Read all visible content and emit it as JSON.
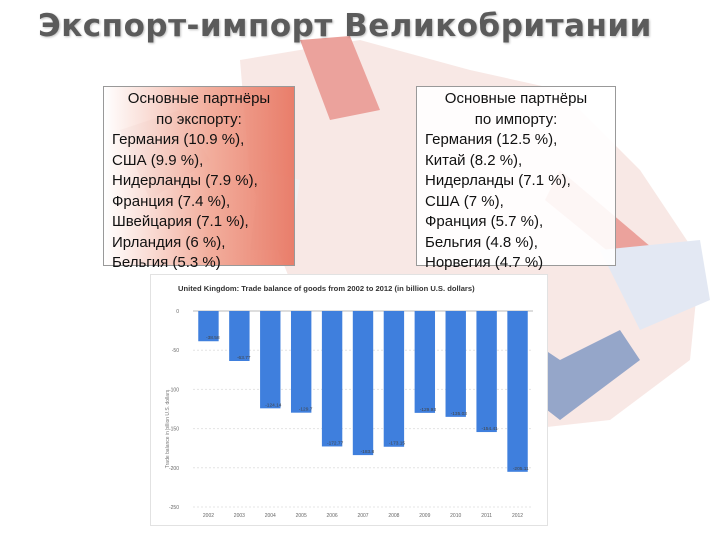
{
  "slide": {
    "title": "Экспорт-импорт Великобритании"
  },
  "export_box": {
    "heading_line1": "Основные партнёры",
    "heading_line2": "по экспорту:",
    "items": [
      "Германия (10.9 %),",
      "США (9.9 %),",
      "Нидерланды (7.9 %),",
      "Франция (7.4 %),",
      "Швейцария (7.1 %),",
      "Ирландия (6 %),",
      "Бельгия (5.3 %)"
    ]
  },
  "import_box": {
    "heading_line1": "Основные партнёры",
    "heading_line2": "по импорту:",
    "items": [
      "Германия (12.5 %),",
      "Китай (8.2 %),",
      "Нидерланды (7.1 %),",
      "США (7 %),",
      "Франция (5.7 %),",
      "Бельгия (4.8 %),",
      "Норвегия (4.7 %)"
    ]
  },
  "colors": {
    "bar": "#3f7fdd",
    "flag_red": "#d8473c",
    "flag_blue": "#2d4f95"
  },
  "chart_data": {
    "type": "bar",
    "title": "United Kingdom: Trade balance of goods from 2002 to 2012 (in billion U.S. dollars)",
    "ylabel": "Trade balance in billion U.S. dollars",
    "categories": [
      "2002",
      "2003",
      "2004",
      "2005",
      "2006",
      "2007",
      "2008",
      "2009",
      "2010",
      "2011",
      "2012"
    ],
    "values": [
      -38.58,
      -63.77,
      -124.14,
      -129.7,
      -172.77,
      -183.8,
      -173.15,
      -129.93,
      -135.03,
      -154.41,
      -205.11
    ],
    "value_labels": [
      "-38.58",
      "-63.77",
      "-124.14",
      "-129.7",
      "-172.77",
      "-183.8",
      "-173.15",
      "-129.93",
      "-135.03",
      "-154.41",
      "-205.11"
    ],
    "yticks": [
      0,
      -50,
      -100,
      -150,
      -200,
      -250
    ],
    "ylim": [
      -250,
      0
    ],
    "grid": true,
    "legend": "none"
  }
}
